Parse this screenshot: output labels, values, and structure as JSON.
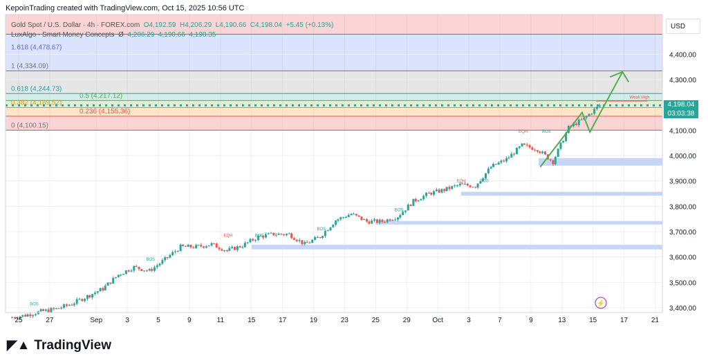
{
  "header": "KepoinTrading created with TradingView.com, Oct 15, 2025 10:56 UTC",
  "legend": {
    "symbol": "Gold Spot / U.S. Dollar · 4h · FOREX.com",
    "open": "O4,192.59",
    "high": "H4,206.29",
    "low": "L4,190.66",
    "close": "C4,198.04",
    "change": "+5.45 (+0.13%)",
    "indicator": "LuxAlgo - Smart Money Concepts",
    "ind_icon": "Ø",
    "ind_values": [
      "4,206.29",
      "4,190.66",
      "4,198.35"
    ]
  },
  "currency": "USD",
  "last_price": "4,198.04",
  "countdown": "03:03:38",
  "brand": "TradingView",
  "colors": {
    "up": "#26a69a",
    "down": "#ef5350",
    "arrow": "#4caf50"
  },
  "chart_data": {
    "type": "candlestick",
    "title": "Gold Spot / U.S. Dollar 4h",
    "ylim": [
      3390,
      4520
    ],
    "yticks": [
      {
        "v": 4400,
        "l": "4,400.00"
      },
      {
        "v": 4300,
        "l": "4,300.00"
      },
      {
        "v": 4100,
        "l": "4,100.00"
      },
      {
        "v": 4000,
        "l": "4,000.00"
      },
      {
        "v": 3900,
        "l": "3,900.00"
      },
      {
        "v": 3800,
        "l": "3,800.00"
      },
      {
        "v": 3700,
        "l": "3,700.00"
      },
      {
        "v": 3600,
        "l": "3,600.00"
      },
      {
        "v": 3500,
        "l": "3,500.00"
      },
      {
        "v": 3400,
        "l": "3,400.00"
      }
    ],
    "xticks": [
      {
        "i": 0,
        "l": "25"
      },
      {
        "i": 2,
        "l": "27"
      },
      {
        "i": 5,
        "l": "Sep"
      },
      {
        "i": 7,
        "l": "3"
      },
      {
        "i": 9,
        "l": "5"
      },
      {
        "i": 11,
        "l": "9"
      },
      {
        "i": 13,
        "l": "11"
      },
      {
        "i": 15,
        "l": "15"
      },
      {
        "i": 17,
        "l": "17"
      },
      {
        "i": 19,
        "l": "19"
      },
      {
        "i": 21,
        "l": "23"
      },
      {
        "i": 23,
        "l": "25"
      },
      {
        "i": 25,
        "l": "29"
      },
      {
        "i": 27,
        "l": "Oct"
      },
      {
        "i": 29,
        "l": "3"
      },
      {
        "i": 31,
        "l": "7"
      },
      {
        "i": 33,
        "l": "9"
      },
      {
        "i": 35,
        "l": "13"
      },
      {
        "i": 37,
        "l": "15"
      },
      {
        "i": 39,
        "l": "17"
      },
      {
        "i": 41,
        "l": "21"
      }
    ],
    "daily_closes": [
      3370,
      3385,
      3395,
      3415,
      3445,
      3475,
      3530,
      3560,
      3545,
      3590,
      3640,
      3640,
      3650,
      3625,
      3645,
      3680,
      3690,
      3690,
      3650,
      3680,
      3745,
      3770,
      3740,
      3740,
      3760,
      3820,
      3850,
      3865,
      3885,
      3880,
      3955,
      3985,
      4040,
      4025,
      3975,
      4110,
      4145,
      4198
    ],
    "fib_levels": [
      {
        "r": "1.618",
        "v": 4478.67,
        "l": "1.618 (4,478.67)",
        "c": "#5b6bd6",
        "fill": "#dbe3fd"
      },
      {
        "r": "1",
        "v": 4334.09,
        "l": "1 (4,334.09)",
        "c": "#777",
        "fill": "#e6e6e6"
      },
      {
        "r": "0.618",
        "v": 4244.73,
        "l": "0.618 (4,244.73)",
        "c": "#26a69a",
        "fill": "#d4ede9"
      },
      {
        "r": "0.5",
        "v": 4217.12,
        "l": "0.5 (4,217.12)",
        "c": "#4caf50",
        "fill": "#dff0d8"
      },
      {
        "r": "0.382",
        "v": 4189.52,
        "l": "0.382 (4,189.52)",
        "c": "#d4a017",
        "fill": "#fde7c8"
      },
      {
        "r": "0.236",
        "v": 4155.36,
        "l": "0.236 (4,155.36)",
        "c": "#ef5350",
        "fill": "#fbd5d5"
      },
      {
        "r": "0",
        "v": 4100.15,
        "l": "0 (4,100.15)",
        "c": "#777",
        "fill": null
      }
    ],
    "demand_zones": [
      {
        "from": 33.5,
        "lo": 3960,
        "hi": 3990
      },
      {
        "from": 28.5,
        "lo": 3842,
        "hi": 3857
      },
      {
        "from": 23,
        "lo": 3728,
        "hi": 3742
      },
      {
        "from": 15,
        "lo": 3630,
        "hi": 3648
      }
    ],
    "labels": [
      {
        "i": 1,
        "v": 3410,
        "t": "BOS",
        "c": "#26a69a"
      },
      {
        "i": 8.5,
        "v": 3585,
        "t": "BOS",
        "c": "#26a69a"
      },
      {
        "i": 13.5,
        "v": 3680,
        "t": "EQH",
        "c": "#ef5350"
      },
      {
        "i": 15.5,
        "v": 3680,
        "t": "BOS",
        "c": "#26a69a"
      },
      {
        "i": 19.5,
        "v": 3705,
        "t": "BOS",
        "c": "#26a69a"
      },
      {
        "i": 24.5,
        "v": 3780,
        "t": "BOS",
        "c": "#26a69a"
      },
      {
        "i": 28.5,
        "v": 3895,
        "t": "EQH",
        "c": "#ef5350"
      },
      {
        "i": 30,
        "v": 3895,
        "t": "BOS",
        "c": "#26a69a"
      },
      {
        "i": 32.5,
        "v": 4090,
        "t": "EQH",
        "c": "#ef5350"
      },
      {
        "i": 34,
        "v": 4090,
        "t": "BOS",
        "c": "#26a69a"
      },
      {
        "i": 40,
        "v": 4225,
        "t": "Weak High",
        "c": "#ef5350"
      }
    ]
  }
}
